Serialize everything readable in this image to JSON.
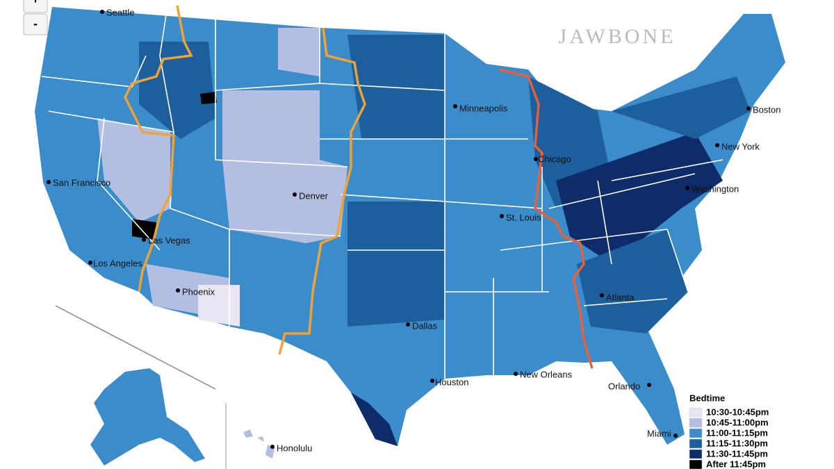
{
  "zoom_controls": {
    "zoom_in": "+",
    "zoom_out": "-"
  },
  "watermark": "JAWBONE",
  "cities": [
    "Seattle",
    "San Francisco",
    "Las Vegas",
    "Los Angeles",
    "Phoenix",
    "Denver",
    "Dallas",
    "Houston",
    "Minneapolis",
    "St. Louis",
    "Chicago",
    "New Orleans",
    "Atlanta",
    "Orlando",
    "Miami",
    "Washington",
    "New York",
    "Boston",
    "Honolulu"
  ],
  "legend": {
    "title": "Bedtime",
    "items": [
      {
        "label": "10:30-10:45pm",
        "color": "#e9e5f3"
      },
      {
        "label": "10:45-11:00pm",
        "color": "#b2bfe2"
      },
      {
        "label": "11:00-11:15pm",
        "color": "#3a8dca"
      },
      {
        "label": "11:15-11:30pm",
        "color": "#1d5e9c"
      },
      {
        "label": "11:30-11:45pm",
        "color": "#0e2b6a"
      },
      {
        "label": "After 11:45pm",
        "color": "#000000"
      }
    ]
  }
}
